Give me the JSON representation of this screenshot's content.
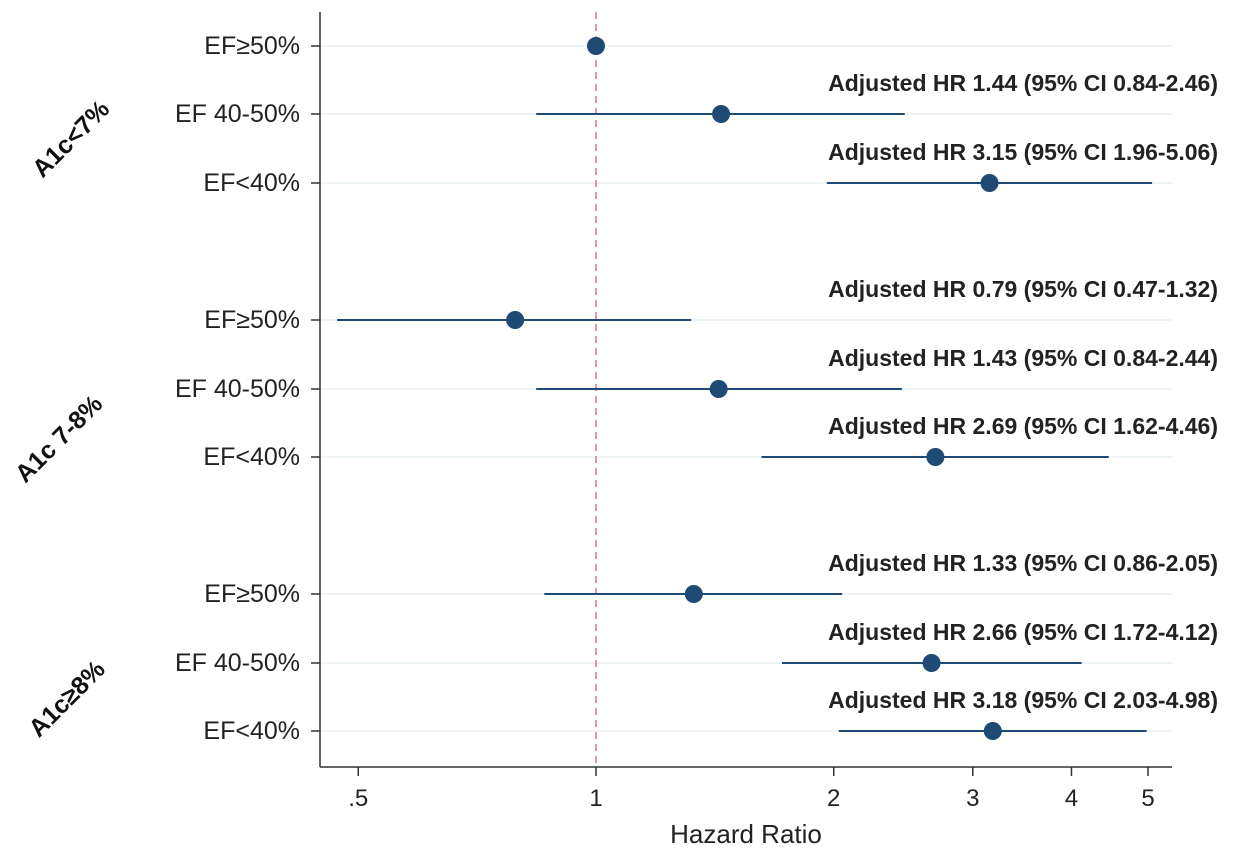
{
  "chart_data": {
    "type": "forest",
    "xlabel": "Hazard Ratio",
    "x_scale": "log",
    "xlim": [
      0.45,
      5.3
    ],
    "x_ticks": [
      0.5,
      1,
      2,
      3,
      4,
      5
    ],
    "x_tick_labels": [
      ".5",
      "1",
      "2",
      "3",
      "4",
      "5"
    ],
    "reference_line": 1,
    "grid": "horizontal",
    "colors": {
      "marker": "#1e4a73",
      "ci_line": "#1e4a73",
      "reference": "#e07a9a",
      "grid": "#eef3f3"
    },
    "groups": [
      {
        "label": "A1c<7%",
        "rows": [
          {
            "label": "EF≥50%",
            "hr": 1.0,
            "ci": null,
            "annotation": ""
          },
          {
            "label": "EF 40-50%",
            "hr": 1.44,
            "ci": [
              0.84,
              2.46
            ],
            "annotation": "Adjusted HR 1.44 (95% CI 0.84-2.46)"
          },
          {
            "label": "EF<40%",
            "hr": 3.15,
            "ci": [
              1.96,
              5.06
            ],
            "annotation": "Adjusted HR 3.15 (95% CI 1.96-5.06)"
          }
        ]
      },
      {
        "label": "A1c 7-8%",
        "rows": [
          {
            "label": "EF≥50%",
            "hr": 0.79,
            "ci": [
              0.47,
              1.32
            ],
            "annotation": "Adjusted HR 0.79 (95% CI 0.47-1.32)"
          },
          {
            "label": "EF 40-50%",
            "hr": 1.43,
            "ci": [
              0.84,
              2.44
            ],
            "annotation": "Adjusted HR 1.43 (95% CI 0.84-2.44)"
          },
          {
            "label": "EF<40%",
            "hr": 2.69,
            "ci": [
              1.62,
              4.46
            ],
            "annotation": "Adjusted HR 2.69 (95% CI 1.62-4.46)"
          }
        ]
      },
      {
        "label": "A1c≥8%",
        "rows": [
          {
            "label": "EF≥50%",
            "hr": 1.33,
            "ci": [
              0.86,
              2.05
            ],
            "annotation": "Adjusted HR 1.33 (95% CI 0.86-2.05)"
          },
          {
            "label": "EF 40-50%",
            "hr": 2.66,
            "ci": [
              1.72,
              4.12
            ],
            "annotation": "Adjusted HR 2.66 (95% CI 1.72-4.12)"
          },
          {
            "label": "EF<40%",
            "hr": 3.18,
            "ci": [
              2.03,
              4.98
            ],
            "annotation": "Adjusted HR 3.18 (95% CI 2.03-4.98)"
          }
        ]
      }
    ]
  }
}
